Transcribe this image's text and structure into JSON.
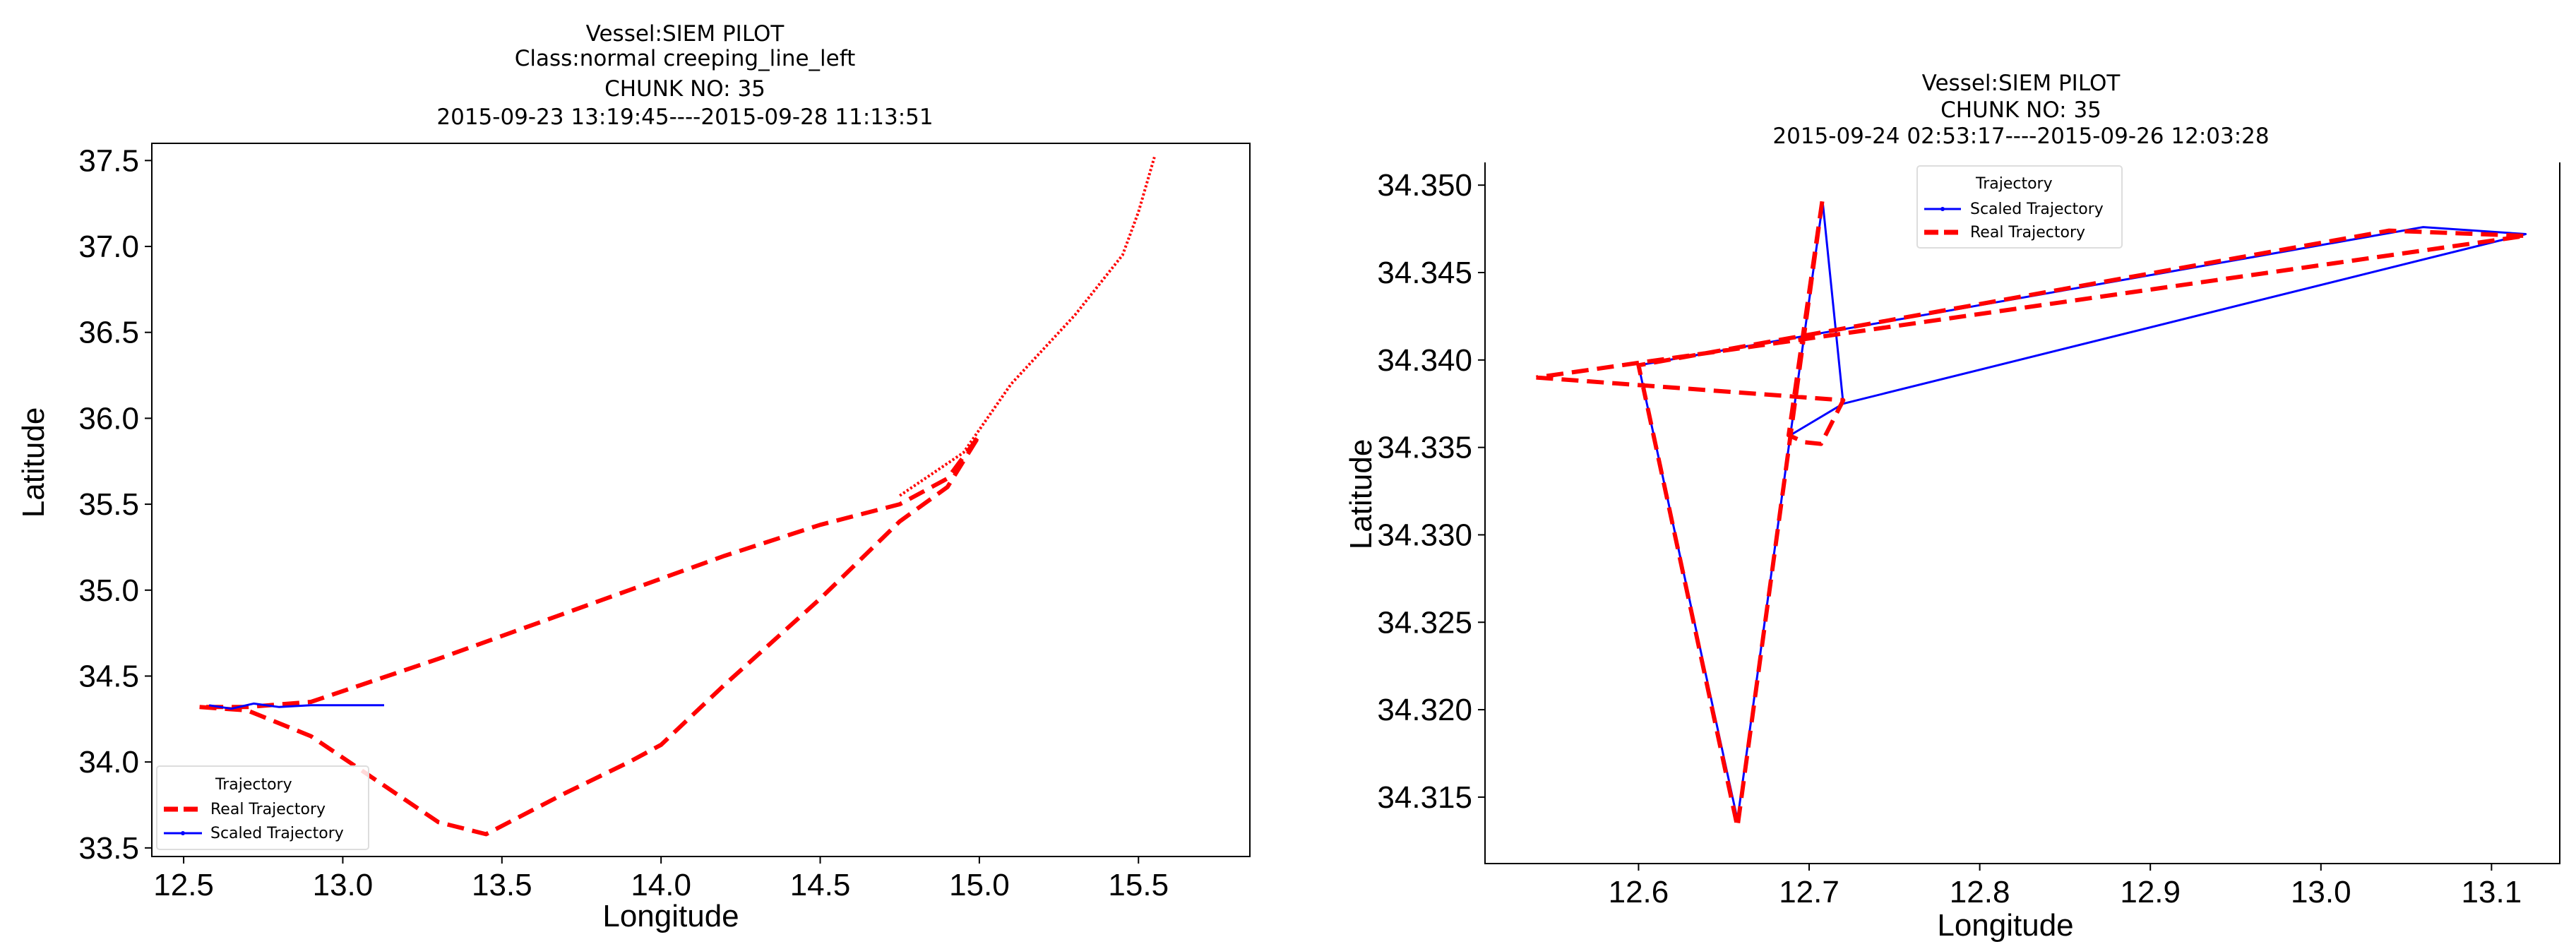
{
  "chart_data": [
    {
      "type": "line",
      "title": [
        "Vessel:SIEM PILOT",
        "Class:normal creeping_line_left",
        "CHUNK NO: 35",
        "2015-09-23 13:19:45----2015-09-28 11:13:51"
      ],
      "xlabel": "Longitude",
      "ylabel": "Latitude",
      "xlim": [
        12.4,
        15.85
      ],
      "ylim": [
        33.45,
        37.6
      ],
      "xticks": [
        12.5,
        13.0,
        13.5,
        14.0,
        14.5,
        15.0,
        15.5
      ],
      "xtick_labels": [
        "12.5",
        "13.0",
        "13.5",
        "14.0",
        "14.5",
        "15.0",
        "15.5"
      ],
      "yticks": [
        33.5,
        34.0,
        34.5,
        35.0,
        35.5,
        36.0,
        36.5,
        37.0,
        37.5
      ],
      "ytick_labels": [
        "33.5",
        "34.0",
        "34.5",
        "35.0",
        "35.5",
        "36.0",
        "36.5",
        "37.0",
        "37.5"
      ],
      "legend": {
        "title": "Trajectory",
        "position": "lower left"
      },
      "series": [
        {
          "name": "Real Trajectory",
          "color": "#ff0000",
          "style": "dashed",
          "x": [
            12.55,
            12.7,
            12.9,
            13.1,
            13.3,
            13.45,
            13.7,
            13.9,
            14.0,
            14.2,
            14.5,
            14.75,
            14.9,
            15.0,
            14.9,
            14.75,
            14.5,
            14.2,
            13.9,
            13.3,
            12.9,
            12.7,
            12.55
          ],
          "y": [
            34.32,
            34.3,
            34.15,
            33.9,
            33.65,
            33.58,
            33.82,
            34.0,
            34.1,
            34.45,
            34.95,
            35.4,
            35.6,
            35.9,
            35.65,
            35.5,
            35.38,
            35.2,
            35.0,
            34.6,
            34.35,
            34.32,
            34.32
          ]
        },
        {
          "name": "Real Trajectory",
          "color": "#ff0000",
          "style": "dotted",
          "x": [
            14.75,
            14.95,
            15.1,
            15.3,
            15.45,
            15.5,
            15.55
          ],
          "y": [
            35.55,
            35.8,
            36.2,
            36.6,
            36.95,
            37.2,
            37.52
          ]
        },
        {
          "name": "Scaled Trajectory",
          "color": "#0000ff",
          "style": "solid",
          "x": [
            12.58,
            12.65,
            12.72,
            12.8,
            12.9,
            13.0,
            13.13
          ],
          "y": [
            34.33,
            34.31,
            34.34,
            34.32,
            34.33,
            34.33,
            34.33
          ]
        }
      ]
    },
    {
      "type": "line",
      "title": [
        "Vessel:SIEM PILOT",
        "CHUNK NO: 35",
        "2015-09-24 02:53:17----2015-09-26 12:03:28"
      ],
      "xlabel": "Longitude",
      "ylabel": "Latitude",
      "xlim": [
        12.51,
        13.14
      ],
      "ylim": [
        34.3112,
        34.3513
      ],
      "xticks": [
        12.6,
        12.7,
        12.8,
        12.9,
        13.0,
        13.1
      ],
      "xtick_labels": [
        "12.6",
        "12.7",
        "12.8",
        "12.9",
        "13.0",
        "13.1"
      ],
      "yticks": [
        34.315,
        34.32,
        34.325,
        34.33,
        34.335,
        34.34,
        34.345,
        34.35
      ],
      "ytick_labels": [
        "34.315",
        "34.320",
        "34.325",
        "34.330",
        "34.335",
        "34.340",
        "34.345",
        "34.350"
      ],
      "legend": {
        "title": "Trajectory",
        "position": "upper center"
      },
      "series": [
        {
          "name": "Scaled Trajectory",
          "color": "#0000ff",
          "style": "solid",
          "x": [
            12.6,
            12.658,
            12.689,
            12.708,
            12.72,
            12.689,
            12.72,
            13.12,
            13.06,
            12.6
          ],
          "y": [
            34.3397,
            34.3137,
            34.3357,
            34.349,
            34.3375,
            34.3357,
            34.3375,
            34.3472,
            34.3476,
            34.3397
          ]
        },
        {
          "name": "Real Trajectory",
          "color": "#ff0000",
          "style": "dashed",
          "x": [
            12.54,
            12.72,
            12.707,
            12.697,
            12.688,
            12.708,
            12.658,
            12.6,
            13.04,
            13.12,
            12.54
          ],
          "y": [
            34.339,
            34.3377,
            34.3352,
            34.3353,
            34.3357,
            34.3493,
            34.3133,
            34.3397,
            34.3474,
            34.3471,
            34.339
          ]
        }
      ]
    }
  ]
}
